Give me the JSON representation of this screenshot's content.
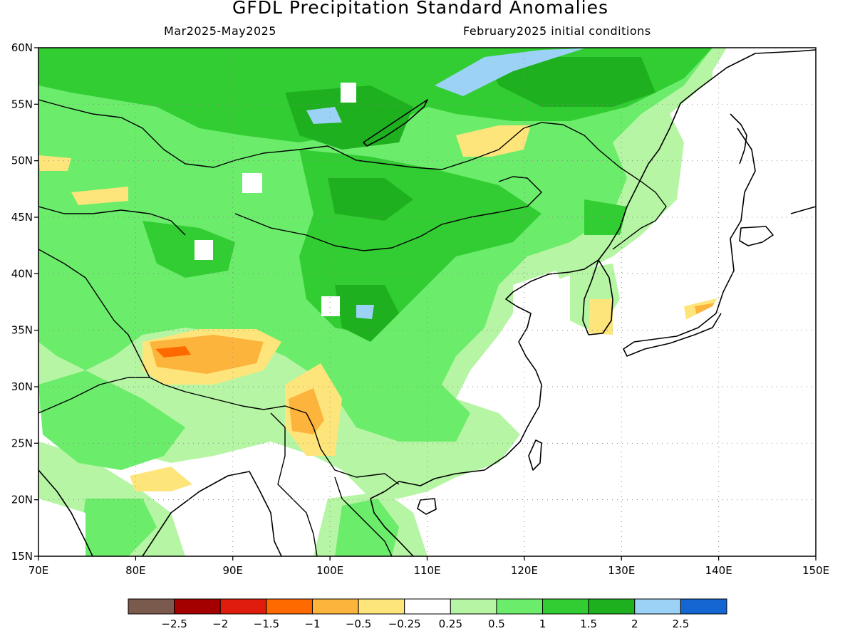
{
  "title": "GFDL Precipitation Standard Anomalies",
  "subtitle_left": "Mar2025-May2025",
  "subtitle_right": "February2025 initial conditions",
  "lon_ticks": [
    "70E",
    "80E",
    "90E",
    "100E",
    "110E",
    "120E",
    "130E",
    "140E",
    "150E"
  ],
  "lat_ticks": [
    "60N",
    "55N",
    "50N",
    "45N",
    "40N",
    "35N",
    "30N",
    "25N",
    "20N",
    "15N"
  ],
  "lon_range": [
    70,
    150
  ],
  "lat_range": [
    15,
    60
  ],
  "grid": true,
  "colorbar": {
    "colors": [
      "#7b5a4e",
      "#a50000",
      "#e01c0c",
      "#ff6a00",
      "#fcb43c",
      "#fde57b",
      "#ffffff",
      "#b6f5a4",
      "#6bec6b",
      "#32cd32",
      "#1fb01f",
      "#9bd2f5",
      "#1466d2"
    ],
    "labels": [
      "-2.5",
      "-2",
      "-1.5",
      "-1",
      "-0.5",
      "-0.25",
      "0.25",
      "0.5",
      "1",
      "1.5",
      "2",
      "2.5"
    ]
  },
  "legend_colors": {
    "white": "#ffffff",
    "lightgreen": "#b6f5a4",
    "green": "#6bec6b",
    "midgreen": "#32cd32",
    "darkgreen": "#1fb01f",
    "lightblue": "#9bd2f5",
    "lightyellow": "#fde57b",
    "orange": "#fcb43c",
    "darkorange": "#ff6a00",
    "red": "#e01c0c"
  }
}
